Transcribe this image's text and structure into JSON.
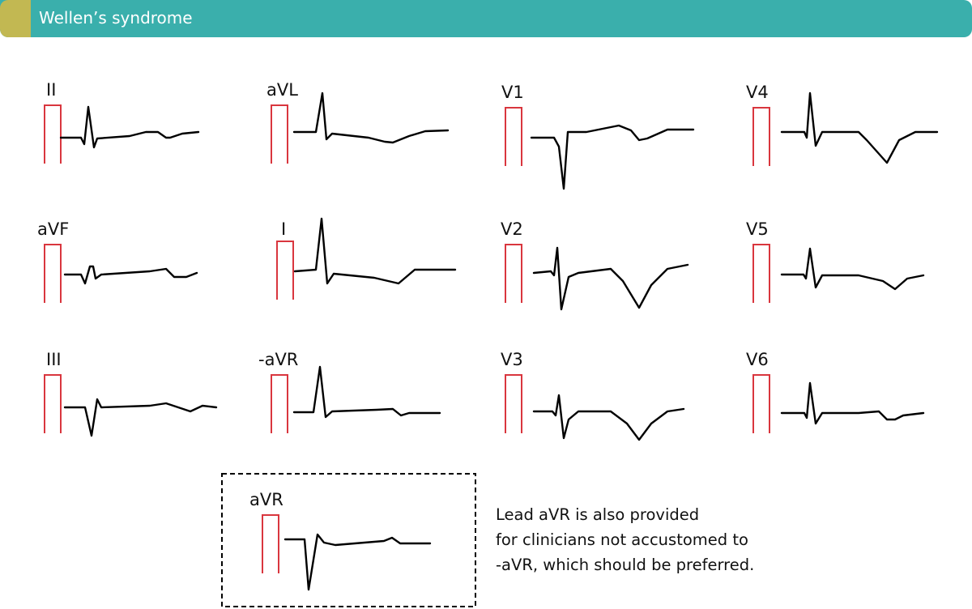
{
  "header": {
    "title": "Wellen’s syndrome",
    "accent_color": "#c2b852",
    "bar_color": "#3aafac"
  },
  "leads": [
    "II",
    "aVL",
    "V1",
    "V4",
    "aVF",
    "I",
    "V2",
    "V5",
    "III",
    "-aVR",
    "V3",
    "V6"
  ],
  "inset": {
    "lead": "aVR"
  },
  "note": {
    "lines": [
      "Lead aVR is also provided",
      "for clinicians not accustomed to",
      "-aVR, which should be preferred."
    ]
  },
  "colors": {
    "calibration": "#d9363e",
    "trace": "#000000"
  }
}
